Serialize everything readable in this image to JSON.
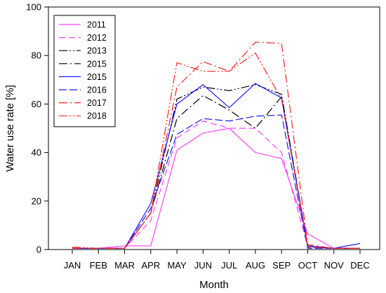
{
  "chart_data": {
    "type": "line",
    "xlabel": "Month",
    "ylabel": "Water use rate [%]",
    "categories": [
      "JAN",
      "FEB",
      "MAR",
      "APR",
      "MAY",
      "JUN",
      "JUL",
      "AUG",
      "SEP",
      "OCT",
      "NOV",
      "DEC"
    ],
    "ylim": [
      0,
      100
    ],
    "yticks": [
      0,
      20,
      40,
      60,
      80,
      100
    ],
    "grid": false,
    "legend_position": "top-left",
    "series": [
      {
        "name": "2011",
        "color": "#ff44ff",
        "dash": "solid",
        "values": [
          0.5,
          0.5,
          1.5,
          1.5,
          41,
          48,
          50,
          40,
          37.5,
          6.5,
          0.5,
          0.5
        ]
      },
      {
        "name": "2012",
        "color": "#ff44ff",
        "dash": "dash",
        "values": [
          0.5,
          0.5,
          0.5,
          12,
          46,
          53,
          50,
          50,
          40,
          1.5,
          0.5,
          0.5
        ]
      },
      {
        "name": "2013",
        "color": "#000000",
        "dash": "dashdotdot",
        "values": [
          0.5,
          0.5,
          0.5,
          15,
          62,
          67,
          65.5,
          68,
          64,
          1.5,
          0.5,
          0.5
        ]
      },
      {
        "name": "2015",
        "color": "#000000",
        "dash": "dashdot",
        "values": [
          0.5,
          0.5,
          0.5,
          15,
          54,
          63.5,
          57.5,
          50,
          63,
          1,
          0.5,
          0.5
        ]
      },
      {
        "name": "2015",
        "color": "#1a1aff",
        "dash": "solid",
        "values": [
          0.5,
          0.5,
          0.5,
          19,
          60,
          68,
          58.5,
          68.5,
          62.5,
          1.5,
          0.5,
          2.5
        ]
      },
      {
        "name": "2016",
        "color": "#1a1aff",
        "dash": "longdash",
        "values": [
          0.5,
          0.5,
          0.5,
          17,
          47.5,
          54,
          53,
          55,
          55.5,
          0.5,
          0.5,
          0.5
        ]
      },
      {
        "name": "2017",
        "color": "#ff2020",
        "dash": "dashdot",
        "values": [
          0.5,
          0.5,
          0.5,
          15,
          67,
          77.5,
          73.5,
          85.5,
          85,
          2,
          0.5,
          0.5
        ]
      },
      {
        "name": "2018",
        "color": "#ff2020",
        "dash": "dashdotdot",
        "values": [
          1,
          0.5,
          0.5,
          15,
          77,
          73.5,
          73.5,
          81,
          62,
          1,
          0.5,
          0.5
        ]
      }
    ]
  }
}
